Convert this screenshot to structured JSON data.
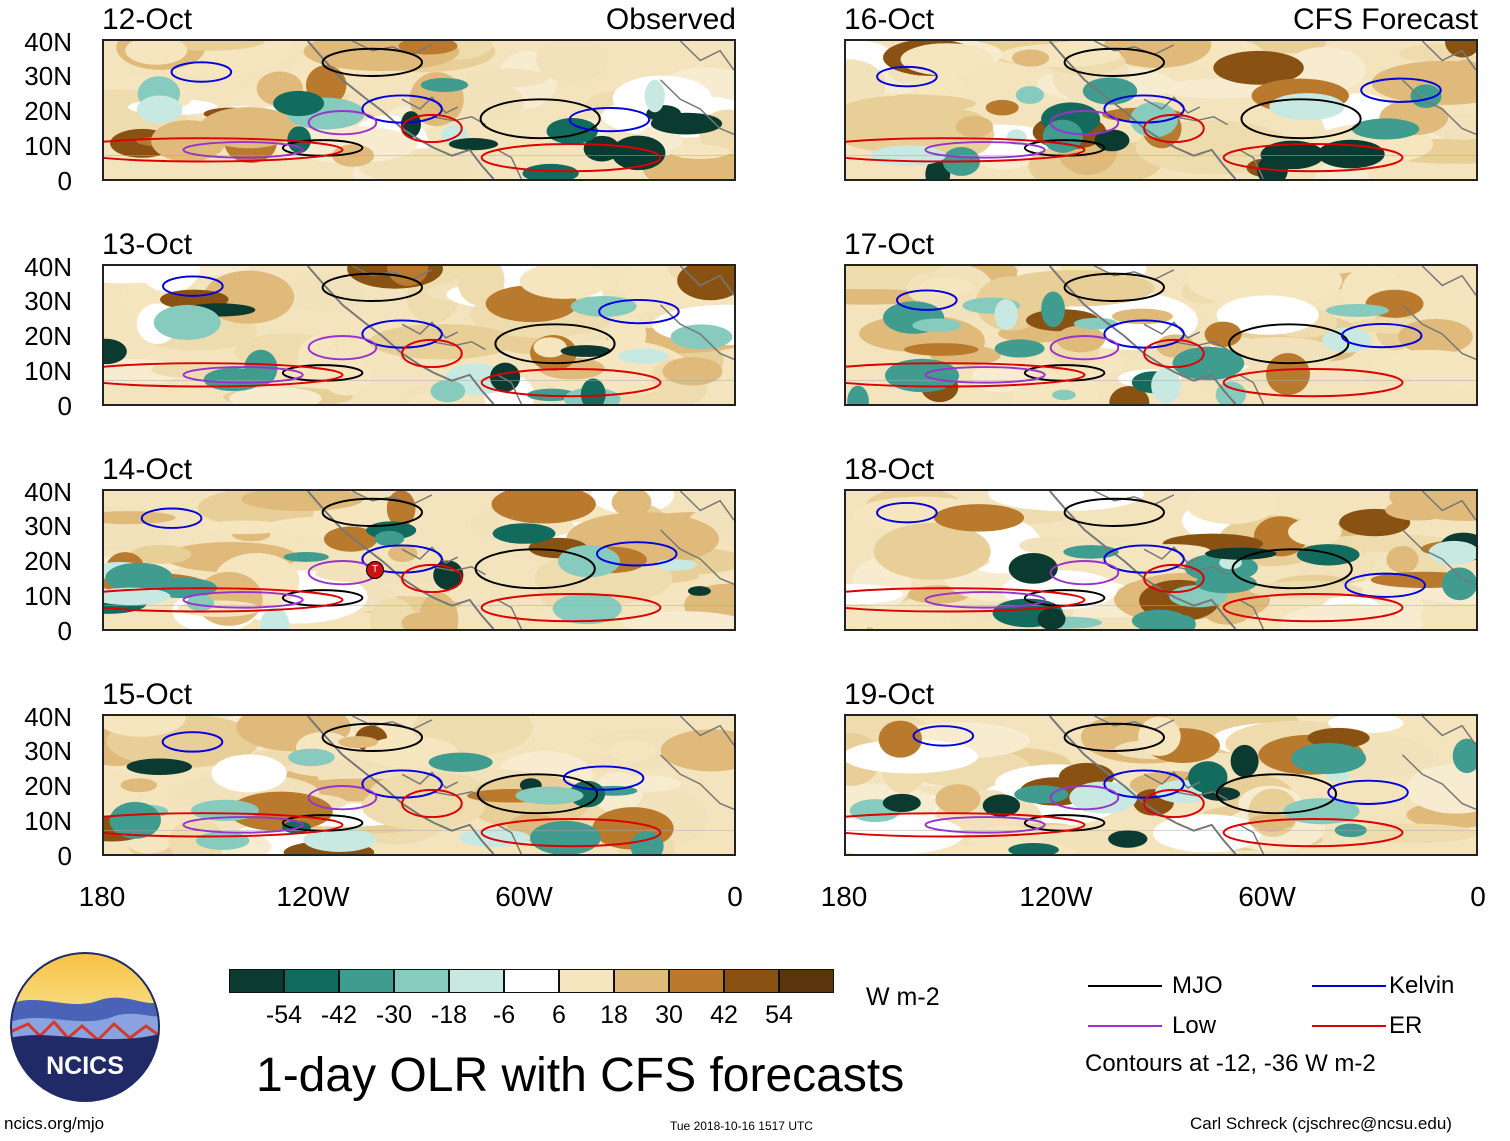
{
  "panels": {
    "obs": [
      {
        "date": "12-Oct",
        "tag": "Observed"
      },
      {
        "date": "13-Oct",
        "tag": ""
      },
      {
        "date": "14-Oct",
        "tag": ""
      },
      {
        "date": "15-Oct",
        "tag": ""
      }
    ],
    "fcst": [
      {
        "date": "16-Oct",
        "tag": "CFS Forecast"
      },
      {
        "date": "17-Oct",
        "tag": ""
      },
      {
        "date": "18-Oct",
        "tag": ""
      },
      {
        "date": "19-Oct",
        "tag": ""
      }
    ]
  },
  "lat_ticks": [
    "40N",
    "30N",
    "20N",
    "10N",
    "0"
  ],
  "lon_ticks": [
    "180",
    "120W",
    "60W",
    "0"
  ],
  "storm_marker": "T",
  "colorbar": {
    "labels": [
      "-54",
      "-42",
      "-30",
      "-18",
      "-6",
      "6",
      "18",
      "30",
      "42",
      "54"
    ],
    "colors": [
      "#0b3b30",
      "#126b5c",
      "#3f9c8e",
      "#86cbbd",
      "#c8e9e2",
      "#ffffff",
      "#f5e6bf",
      "#dfba7a",
      "#b97a2e",
      "#8a5212",
      "#5a340a"
    ],
    "units": "W m-2"
  },
  "legend": {
    "items": [
      {
        "label": "MJO",
        "color": "#000000"
      },
      {
        "label": "Kelvin",
        "color": "#0000dd"
      },
      {
        "label": "Low",
        "color": "#9933cc"
      },
      {
        "label": "ER",
        "color": "#dd0000"
      }
    ],
    "note": "Contours at -12, -36 W m-2"
  },
  "logo": {
    "text": "NCICS"
  },
  "title": "1-day OLR with CFS forecasts",
  "footer": {
    "url": "ncics.org/mjo",
    "timestamp": "Tue 2018-10-16 1517 UTC",
    "credit": "Carl Schreck (cjschrec@ncsu.edu)"
  }
}
